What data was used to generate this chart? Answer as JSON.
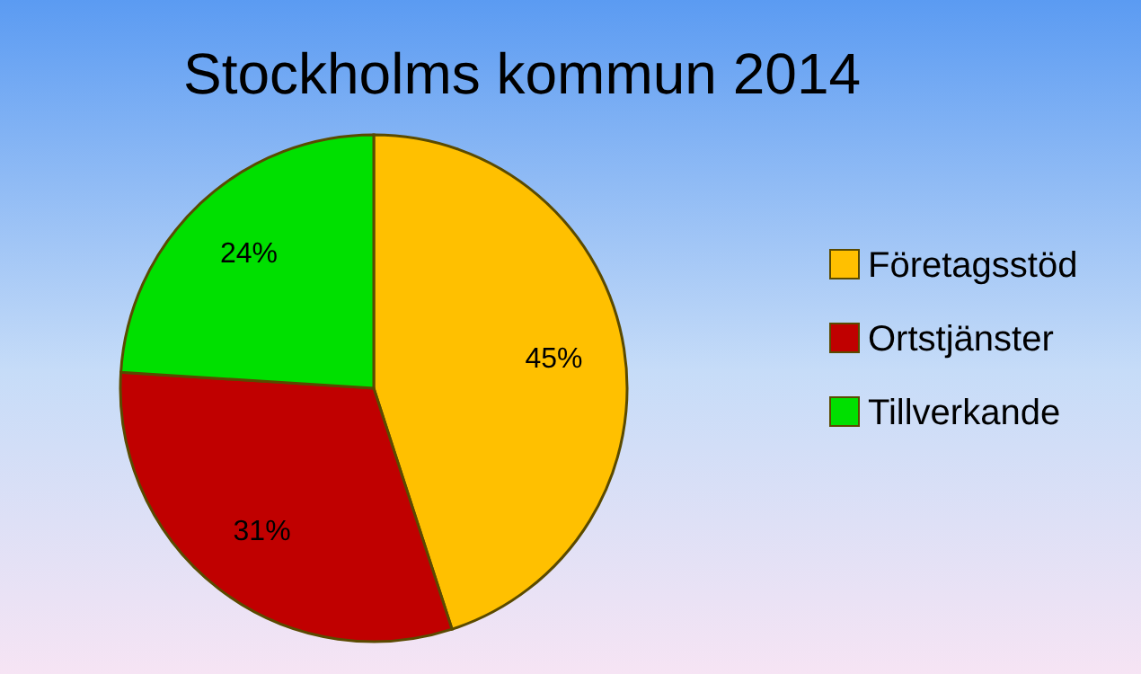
{
  "chart_data": {
    "type": "pie",
    "title": "Stockholms kommun 2014",
    "categories": [
      "Företagsstöd",
      "Ortstjänster",
      "Tillverkande"
    ],
    "values": [
      45,
      31,
      24
    ],
    "value_labels": [
      "45%",
      "31%",
      "24%"
    ],
    "colors": [
      "#ffc000",
      "#c00000",
      "#00e000"
    ],
    "legend": "right"
  }
}
